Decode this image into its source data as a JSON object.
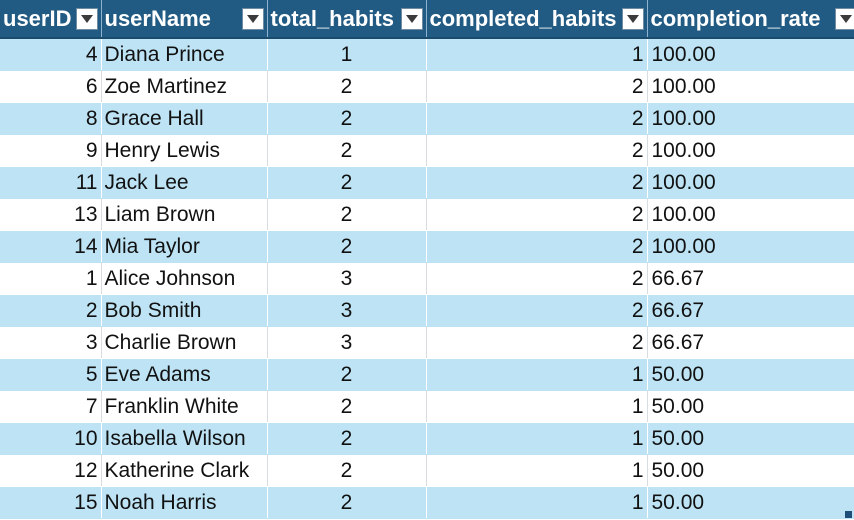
{
  "table": {
    "columns": [
      {
        "key": "userID",
        "label": "userID"
      },
      {
        "key": "userName",
        "label": "userName"
      },
      {
        "key": "total_habits",
        "label": "total_habits"
      },
      {
        "key": "completed_habits",
        "label": "completed_habits"
      },
      {
        "key": "completion_rate",
        "label": "completion_rate"
      }
    ],
    "rows": [
      {
        "userID": "4",
        "userName": "Diana Prince",
        "total_habits": "1",
        "completed_habits": "1",
        "completion_rate": "100.00"
      },
      {
        "userID": "6",
        "userName": "Zoe Martinez",
        "total_habits": "2",
        "completed_habits": "2",
        "completion_rate": "100.00"
      },
      {
        "userID": "8",
        "userName": "Grace Hall",
        "total_habits": "2",
        "completed_habits": "2",
        "completion_rate": "100.00"
      },
      {
        "userID": "9",
        "userName": "Henry Lewis",
        "total_habits": "2",
        "completed_habits": "2",
        "completion_rate": "100.00"
      },
      {
        "userID": "11",
        "userName": "Jack Lee",
        "total_habits": "2",
        "completed_habits": "2",
        "completion_rate": "100.00"
      },
      {
        "userID": "13",
        "userName": "Liam Brown",
        "total_habits": "2",
        "completed_habits": "2",
        "completion_rate": "100.00"
      },
      {
        "userID": "14",
        "userName": "Mia Taylor",
        "total_habits": "2",
        "completed_habits": "2",
        "completion_rate": "100.00"
      },
      {
        "userID": "1",
        "userName": "Alice Johnson",
        "total_habits": "3",
        "completed_habits": "2",
        "completion_rate": "66.67"
      },
      {
        "userID": "2",
        "userName": "Bob Smith",
        "total_habits": "3",
        "completed_habits": "2",
        "completion_rate": "66.67"
      },
      {
        "userID": "3",
        "userName": "Charlie Brown",
        "total_habits": "3",
        "completed_habits": "2",
        "completion_rate": "66.67"
      },
      {
        "userID": "5",
        "userName": "Eve Adams",
        "total_habits": "2",
        "completed_habits": "1",
        "completion_rate": "50.00"
      },
      {
        "userID": "7",
        "userName": "Franklin White",
        "total_habits": "2",
        "completed_habits": "1",
        "completion_rate": "50.00"
      },
      {
        "userID": "10",
        "userName": "Isabella Wilson",
        "total_habits": "2",
        "completed_habits": "1",
        "completion_rate": "50.00"
      },
      {
        "userID": "12",
        "userName": "Katherine Clark",
        "total_habits": "2",
        "completed_habits": "1",
        "completion_rate": "50.00"
      },
      {
        "userID": "15",
        "userName": "Noah Harris",
        "total_habits": "2",
        "completed_habits": "1",
        "completion_rate": "50.00"
      }
    ]
  },
  "icons": {
    "filter_dropdown": "chevron-down-icon",
    "resize_handle": "table-resize-handle"
  },
  "colors": {
    "header_bg": "#215a82",
    "header_text": "#ffffff",
    "band_row": "#bde3f4",
    "plain_row": "#ffffff"
  }
}
